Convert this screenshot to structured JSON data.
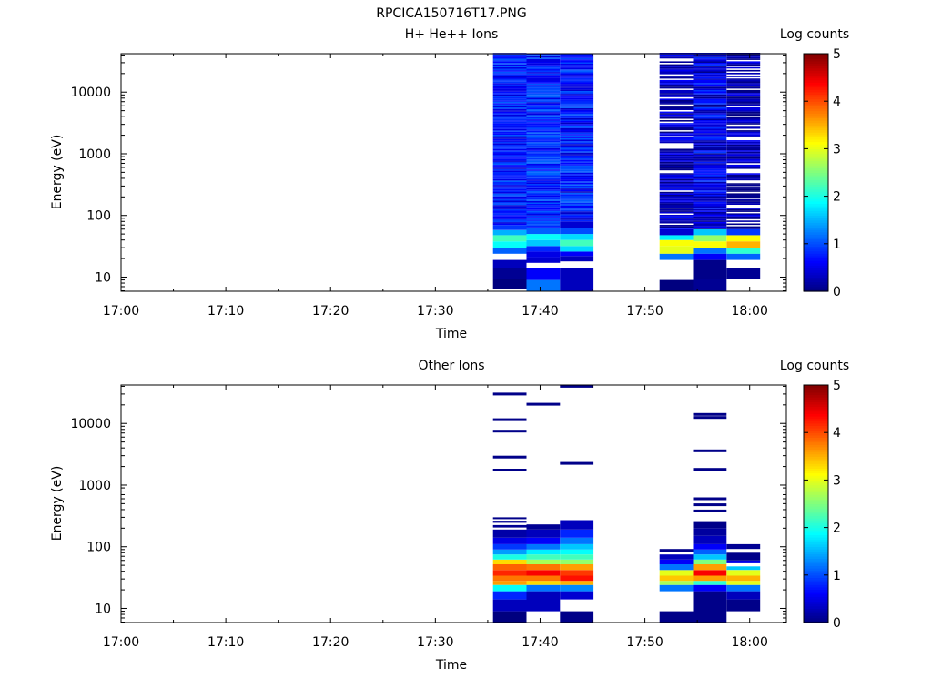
{
  "figure_title": "RPCICA150716T17.PNG",
  "colormap": [
    "#00007f",
    "#0000ff",
    "#007fff",
    "#00ffff",
    "#7fff7f",
    "#ffff00",
    "#ff7f00",
    "#ff0000",
    "#7f0000"
  ],
  "chart_data": [
    {
      "type": "heatmap",
      "title": "H+ He++ Ions",
      "xlabel": "Time",
      "ylabel": "Energy (eV)",
      "x_ticks": [
        "17:00",
        "17:10",
        "17:20",
        "17:30",
        "17:40",
        "17:50",
        "18:00"
      ],
      "y_ticks": [
        "10",
        "100",
        "1000",
        "10000"
      ],
      "y_scale": "log",
      "colorbar": {
        "label": "Log counts",
        "range": [
          0,
          5
        ],
        "ticks": [
          "0",
          "1",
          "2",
          "3",
          "4",
          "5"
        ]
      },
      "columns": [
        {
          "start": "17:35.5",
          "end": "17:38.7",
          "low": [
            [
              6.5,
              9.5,
              0.0
            ],
            [
              9.5,
              14.0,
              0.1
            ],
            [
              14.0,
              19.0,
              0.3
            ],
            [
              19.0,
              24.0,
              -1
            ],
            [
              24.0,
              30.0,
              1.1
            ],
            [
              30.0,
              38.0,
              1.9
            ],
            [
              38.0,
              48.0,
              2.2
            ],
            [
              48.0,
              58.0,
              1.5
            ],
            [
              58.0,
              70.0,
              0.9
            ]
          ],
          "base": 0.75,
          "var": 0.35,
          "gap": 0.0,
          "seed": 11
        },
        {
          "start": "17:38.7",
          "end": "17:41.9",
          "low": [
            [
              5.9,
              9.0,
              1.2
            ],
            [
              9.0,
              14.0,
              0.6
            ],
            [
              14.0,
              17.0,
              -1
            ],
            [
              17.0,
              21.0,
              0.4
            ],
            [
              21.0,
              26.0,
              0.5
            ],
            [
              26.0,
              32.0,
              0.8
            ],
            [
              32.0,
              40.0,
              1.6
            ],
            [
              40.0,
              50.0,
              1.9
            ],
            [
              50.0,
              62.0,
              1.1
            ]
          ],
          "base": 0.8,
          "var": 0.35,
          "gap": 0.0,
          "seed": 23
        },
        {
          "start": "17:41.9",
          "end": "17:45.1",
          "low": [
            [
              5.9,
              14.0,
              0.3
            ],
            [
              14.0,
              18.0,
              -1
            ],
            [
              18.0,
              22.0,
              0.3
            ],
            [
              22.0,
              26.0,
              0.6
            ],
            [
              26.0,
              32.0,
              1.7
            ],
            [
              32.0,
              40.0,
              2.2
            ],
            [
              40.0,
              50.0,
              1.7
            ],
            [
              50.0,
              62.0,
              1.0
            ],
            [
              62.0,
              80.0,
              0.4
            ]
          ],
          "base": 0.7,
          "var": 0.4,
          "gap": 0.0,
          "seed": 37
        },
        {
          "start": "17:51.4",
          "end": "17:54.6",
          "low": [
            [
              5.9,
              9.0,
              0.0
            ],
            [
              9.0,
              19.0,
              -1
            ],
            [
              19.0,
              24.0,
              1.2
            ],
            [
              24.0,
              32.0,
              3.0
            ],
            [
              32.0,
              40.0,
              3.1
            ],
            [
              40.0,
              48.0,
              1.8
            ],
            [
              48.0,
              60.0,
              0.4
            ]
          ],
          "base": 0.3,
          "var": 0.4,
          "gap": 0.2,
          "seed": 41
        },
        {
          "start": "17:54.6",
          "end": "17:57.8",
          "low": [
            [
              5.9,
              9.5,
              0.1
            ],
            [
              9.5,
              19.0,
              0.05
            ],
            [
              19.0,
              24.0,
              0.6
            ],
            [
              24.0,
              30.0,
              1.2
            ],
            [
              30.0,
              38.0,
              3.1
            ],
            [
              38.0,
              48.0,
              2.6
            ],
            [
              48.0,
              60.0,
              1.6
            ]
          ],
          "base": 0.5,
          "var": 0.45,
          "gap": 0.0,
          "seed": 53
        },
        {
          "start": "17:57.8",
          "end": "18:01.0",
          "low": [
            [
              9.5,
              14.0,
              0.1
            ],
            [
              14.0,
              19.0,
              -1
            ],
            [
              19.0,
              24.0,
              1.1
            ],
            [
              24.0,
              30.0,
              2.1
            ],
            [
              30.0,
              38.0,
              3.5
            ],
            [
              38.0,
              48.0,
              3.1
            ],
            [
              48.0,
              60.0,
              0.9
            ]
          ],
          "base": 0.25,
          "var": 0.35,
          "gap": 0.22,
          "seed": 67
        }
      ]
    },
    {
      "type": "heatmap",
      "title": "Other Ions",
      "xlabel": "Time",
      "ylabel": "Energy (eV)",
      "x_ticks": [
        "17:00",
        "17:10",
        "17:20",
        "17:30",
        "17:40",
        "17:50",
        "18:00"
      ],
      "y_ticks": [
        "10",
        "100",
        "1000",
        "10000"
      ],
      "y_scale": "log",
      "colorbar": {
        "label": "Log counts",
        "range": [
          0,
          5
        ],
        "ticks": [
          "0",
          "1",
          "2",
          "3",
          "4",
          "5"
        ]
      },
      "columns": [
        {
          "start": "17:35.5",
          "end": "17:38.7",
          "low": [
            [
              5.9,
              9.0,
              0.0
            ],
            [
              9.0,
              14.0,
              0.3
            ],
            [
              14.0,
              19.0,
              0.8
            ],
            [
              19.0,
              24.0,
              1.9
            ],
            [
              24.0,
              28.0,
              3.6
            ],
            [
              28.0,
              34.0,
              3.8
            ],
            [
              34.0,
              42.0,
              4.2
            ],
            [
              42.0,
              52.0,
              3.9
            ],
            [
              52.0,
              62.0,
              3.3
            ],
            [
              62.0,
              75.0,
              2.0
            ],
            [
              75.0,
              90.0,
              1.4
            ],
            [
              90.0,
              110.0,
              0.9
            ],
            [
              110.0,
              140.0,
              0.5
            ],
            [
              140.0,
              190.0,
              0.2
            ],
            [
              190.0,
              205.0,
              -1
            ],
            [
              205.0,
              225.0,
              0.1
            ],
            [
              225.0,
              245.0,
              -1
            ],
            [
              245.0,
              265.0,
              0.1
            ],
            [
              265.0,
              280.0,
              -1
            ],
            [
              280.0,
              300.0,
              0.05
            ]
          ],
          "lines": [
            1750,
            2850,
            7500,
            11500,
            30000
          ],
          "seed": 71
        },
        {
          "start": "17:38.7",
          "end": "17:41.9",
          "low": [
            [
              5.9,
              9.0,
              -1
            ],
            [
              9.0,
              19.0,
              0.3
            ],
            [
              19.0,
              24.0,
              1.2
            ],
            [
              24.0,
              28.0,
              3.3
            ],
            [
              28.0,
              34.0,
              3.8
            ],
            [
              34.0,
              42.0,
              4.4
            ],
            [
              42.0,
              52.0,
              3.8
            ],
            [
              52.0,
              62.0,
              2.7
            ],
            [
              62.0,
              75.0,
              2.2
            ],
            [
              75.0,
              90.0,
              1.8
            ],
            [
              90.0,
              110.0,
              1.2
            ],
            [
              110.0,
              140.0,
              0.6
            ],
            [
              140.0,
              190.0,
              0.3
            ],
            [
              190.0,
              230.0,
              0.1
            ]
          ],
          "lines": [
            20500
          ],
          "seed": 83
        },
        {
          "start": "17:41.9",
          "end": "17:45.1",
          "low": [
            [
              5.9,
              9.0,
              0.05
            ],
            [
              9.0,
              14.0,
              -1
            ],
            [
              14.0,
              19.0,
              0.4
            ],
            [
              19.0,
              24.0,
              1.3
            ],
            [
              24.0,
              28.0,
              3.5
            ],
            [
              28.0,
              34.0,
              4.3
            ],
            [
              34.0,
              42.0,
              4.1
            ],
            [
              42.0,
              52.0,
              3.6
            ],
            [
              52.0,
              62.0,
              2.6
            ],
            [
              62.0,
              75.0,
              2.2
            ],
            [
              75.0,
              90.0,
              1.9
            ],
            [
              90.0,
              110.0,
              1.6
            ],
            [
              110.0,
              140.0,
              1.2
            ],
            [
              140.0,
              190.0,
              0.8
            ],
            [
              190.0,
              270.0,
              0.3
            ]
          ],
          "lines": [
            2250,
            40000
          ],
          "seed": 97
        },
        {
          "start": "17:51.4",
          "end": "17:54.6",
          "low": [
            [
              5.9,
              9.0,
              0.05
            ],
            [
              9.0,
              19.0,
              -1
            ],
            [
              19.0,
              24.0,
              1.2
            ],
            [
              24.0,
              28.0,
              2.7
            ],
            [
              28.0,
              34.0,
              3.4
            ],
            [
              34.0,
              42.0,
              3.0
            ],
            [
              42.0,
              52.0,
              1.2
            ],
            [
              52.0,
              62.0,
              0.6
            ],
            [
              62.0,
              75.0,
              0.3
            ],
            [
              75.0,
              82.0,
              -1
            ],
            [
              82.0,
              92.0,
              0.05
            ]
          ],
          "lines": [],
          "seed": 101
        },
        {
          "start": "17:54.6",
          "end": "17:57.8",
          "low": [
            [
              5.9,
              19.0,
              0.05
            ],
            [
              19.0,
              24.0,
              0.6
            ],
            [
              24.0,
              28.0,
              2.1
            ],
            [
              28.0,
              34.0,
              3.6
            ],
            [
              34.0,
              42.0,
              4.4
            ],
            [
              42.0,
              52.0,
              3.6
            ],
            [
              52.0,
              62.0,
              2.5
            ],
            [
              62.0,
              75.0,
              1.6
            ],
            [
              75.0,
              90.0,
              1.1
            ],
            [
              90.0,
              110.0,
              0.6
            ],
            [
              110.0,
              150.0,
              0.3
            ],
            [
              150.0,
              200.0,
              0.15
            ],
            [
              200.0,
              260.0,
              0.05
            ]
          ],
          "lines": [
            380,
            480,
            600,
            1800,
            3600,
            12500,
            14000
          ],
          "seed": 113
        },
        {
          "start": "17:57.8",
          "end": "18:01.0",
          "low": [
            [
              5.9,
              9.0,
              -1
            ],
            [
              9.0,
              14.0,
              0.05
            ],
            [
              14.0,
              19.0,
              0.3
            ],
            [
              19.0,
              24.0,
              1.2
            ],
            [
              24.0,
              28.0,
              3.0
            ],
            [
              28.0,
              34.0,
              3.5
            ],
            [
              34.0,
              42.0,
              3.0
            ],
            [
              42.0,
              48.0,
              1.6
            ],
            [
              48.0,
              54.0,
              -1
            ],
            [
              54.0,
              60.0,
              0.5
            ],
            [
              60.0,
              80.0,
              0.05
            ],
            [
              80.0,
              92.0,
              -1
            ],
            [
              92.0,
              110.0,
              0.1
            ]
          ],
          "lines": [],
          "seed": 127
        }
      ]
    }
  ]
}
